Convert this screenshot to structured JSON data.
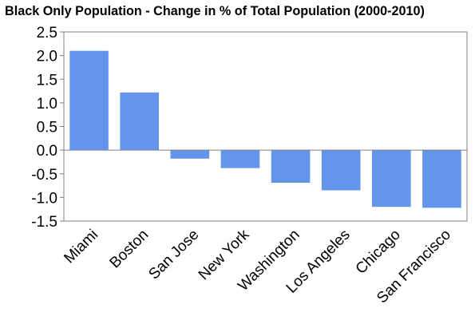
{
  "chart_data": {
    "type": "bar",
    "title": "Black Only Population - Change in % of Total Population (2000-2010)",
    "xlabel": "",
    "ylabel": "",
    "categories": [
      "Miami",
      "Boston",
      "San Jose",
      "New York",
      "Washington",
      "Los Angeles",
      "Chicago",
      "San Francisco"
    ],
    "values": [
      2.1,
      1.22,
      -0.18,
      -0.38,
      -0.69,
      -0.85,
      -1.2,
      -1.22
    ],
    "ylim": [
      -1.5,
      2.5
    ],
    "yticks": [
      "2.5",
      "2.0",
      "1.5",
      "1.0",
      "0.5",
      "0.0",
      "-0.5",
      "-1.0",
      "-1.5"
    ],
    "grid": false,
    "legend": "none",
    "colors": {
      "bar": "#6495ED",
      "axis": "#808080"
    }
  }
}
